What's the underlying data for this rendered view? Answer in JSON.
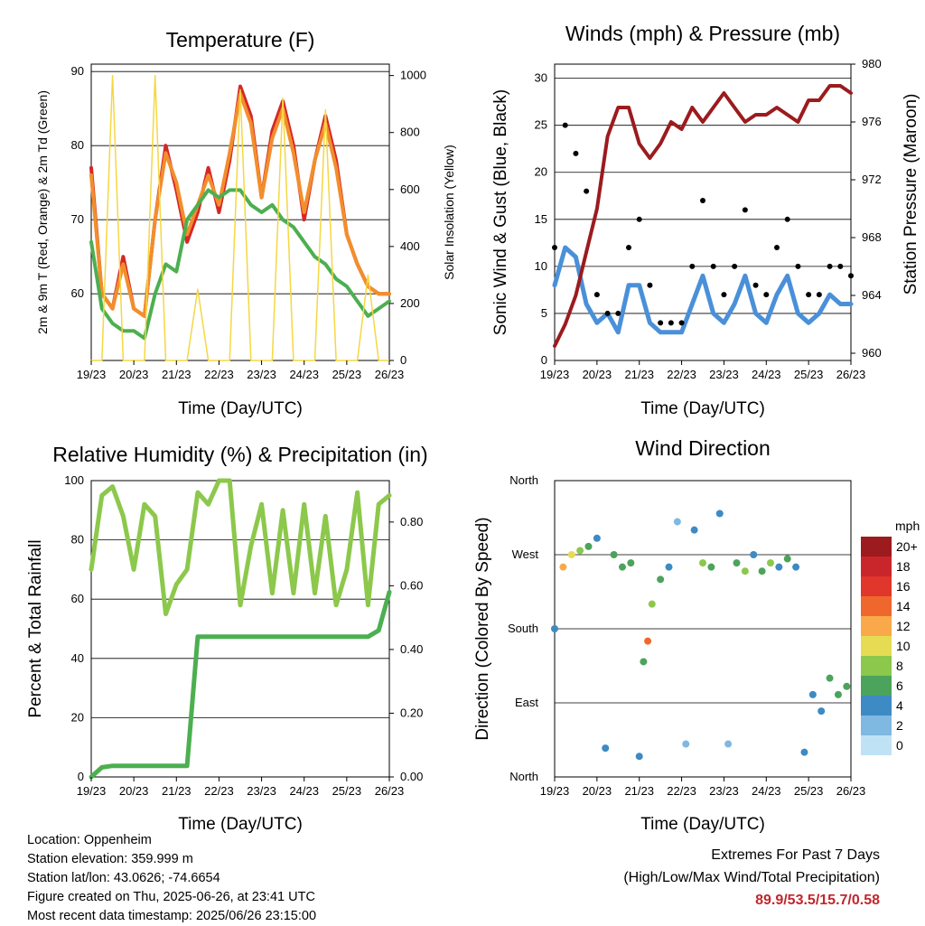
{
  "panels": {
    "temperature": {
      "title": "Temperature (F)",
      "ylabel_left": "2m & 9m T (Red, Orange) & 2m Td (Green)",
      "ylabel_right": "Solar Insolation (Yellow)",
      "xlabel": "Time (Day/UTC)"
    },
    "winds": {
      "title": "Winds (mph) & Pressure (mb)",
      "ylabel_left": "Sonic Wind & Gust (Blue, Black)",
      "ylabel_right": "Station Pressure (Maroon)",
      "xlabel": "Time (Day/UTC)"
    },
    "humidity": {
      "title": "Relative Humidity (%) & Precipitation (in)",
      "ylabel_left": "Percent & Total Rainfall",
      "xlabel": "Time (Day/UTC)"
    },
    "wind_direction": {
      "title": "Wind Direction",
      "ylabel_left": "Direction (Colored By Speed)",
      "xlabel": "Time (Day/UTC)",
      "colorbar_title": "mph",
      "colorbar_labels": [
        "20+",
        "18",
        "16",
        "14",
        "12",
        "10",
        "8",
        "6",
        "4",
        "2",
        "0"
      ],
      "colorbar_colors": [
        "#9b1b1e",
        "#c8262b",
        "#e0362c",
        "#f0672e",
        "#f9a94a",
        "#e6dc54",
        "#8cc84b",
        "#4ca35c",
        "#3d8ac4",
        "#7fb8e0",
        "#bfe3f5"
      ]
    }
  },
  "info": {
    "location": "Location: Oppenheim",
    "elevation": "Station elevation: 359.999 m",
    "latlon": "Station lat/lon: 43.0626; -74.6654",
    "created": "Figure created on Thu, 2025-06-26, at 23:41 UTC",
    "recent": "Most recent data timestamp: 2025/06/26 23:15:00"
  },
  "extremes": {
    "title": "Extremes For Past 7 Days",
    "subtitle": "(High/Low/Max Wind/Total Precipitation)",
    "values": "89.9/53.5/15.7/0.58"
  },
  "chart_data": [
    {
      "type": "line",
      "title": "Temperature (F)",
      "xlabel": "Time (Day/UTC)",
      "ylabel": "2m & 9m T (Red, Orange) & 2m Td (Green)",
      "y2label": "Solar Insolation (Yellow)",
      "x_ticks": [
        "19/23",
        "20/23",
        "21/23",
        "22/23",
        "23/23",
        "24/23",
        "25/23",
        "26/23"
      ],
      "x": [
        0,
        0.25,
        0.5,
        0.75,
        1,
        1.25,
        1.5,
        1.75,
        2,
        2.25,
        2.5,
        2.75,
        3,
        3.25,
        3.5,
        3.75,
        4,
        4.25,
        4.5,
        4.75,
        5,
        5.25,
        5.5,
        5.75,
        6,
        6.25,
        6.5,
        6.75,
        7
      ],
      "ylim": [
        51,
        91
      ],
      "y_ticks": [
        60,
        70,
        80,
        90
      ],
      "y2lim": [
        0,
        1040
      ],
      "y2_ticks": [
        0,
        200,
        400,
        600,
        800,
        1000
      ],
      "series": [
        {
          "color": "#d62728",
          "axis": "left",
          "values": [
            77,
            60,
            58,
            65,
            58,
            57,
            70,
            80,
            74,
            67,
            71,
            77,
            71,
            78,
            88,
            84,
            73,
            82,
            86,
            80,
            70,
            78,
            84,
            78,
            68,
            64,
            61,
            60,
            60
          ]
        },
        {
          "color": "#f28e2b",
          "axis": "left",
          "values": [
            76,
            60,
            58,
            64,
            58,
            57,
            70,
            79,
            75,
            68,
            72,
            76,
            72,
            79,
            87,
            83,
            73,
            81,
            85,
            79,
            71,
            78,
            83,
            77,
            68,
            64,
            61,
            60,
            60
          ]
        },
        {
          "color": "#4caf50",
          "axis": "left",
          "values": [
            67,
            58,
            56,
            55,
            55,
            54,
            60,
            64,
            63,
            70,
            72,
            74,
            73,
            74,
            74,
            72,
            71,
            72,
            70,
            69,
            67,
            65,
            64,
            62,
            61,
            59,
            57,
            58,
            59
          ]
        },
        {
          "color": "#f5d742",
          "axis": "right",
          "values": [
            0,
            0,
            1000,
            0,
            0,
            0,
            1000,
            0,
            0,
            0,
            250,
            0,
            0,
            0,
            950,
            0,
            0,
            0,
            920,
            0,
            0,
            0,
            880,
            0,
            0,
            0,
            300,
            0,
            0
          ]
        }
      ]
    },
    {
      "type": "line",
      "title": "Winds (mph) & Pressure (mb)",
      "xlabel": "Time (Day/UTC)",
      "ylabel": "Sonic Wind & Gust (Blue, Black)",
      "y2label": "Station Pressure (Maroon)",
      "x_ticks": [
        "19/23",
        "20/23",
        "21/23",
        "22/23",
        "23/23",
        "24/23",
        "25/23",
        "26/23"
      ],
      "x": [
        0,
        0.25,
        0.5,
        0.75,
        1,
        1.25,
        1.5,
        1.75,
        2,
        2.25,
        2.5,
        2.75,
        3,
        3.25,
        3.5,
        3.75,
        4,
        4.25,
        4.5,
        4.75,
        5,
        5.25,
        5.5,
        5.75,
        6,
        6.25,
        6.5,
        6.75,
        7
      ],
      "ylim": [
        0,
        31.5
      ],
      "y_ticks": [
        0,
        5,
        10,
        15,
        20,
        25,
        30
      ],
      "y2lim": [
        959.5,
        980
      ],
      "y2_ticks": [
        960,
        964,
        968,
        972,
        976,
        980
      ],
      "series": [
        {
          "color": "#4a90d9",
          "axis": "left",
          "values": [
            8,
            12,
            11,
            6,
            4,
            5,
            3,
            8,
            8,
            4,
            3,
            3,
            3,
            6,
            9,
            5,
            4,
            6,
            9,
            5,
            4,
            7,
            9,
            5,
            4,
            5,
            7,
            6,
            6
          ]
        },
        {
          "color": "#000000",
          "axis": "left",
          "values": [
            12,
            25,
            22,
            18,
            7,
            5,
            5,
            12,
            15,
            8,
            4,
            4,
            4,
            10,
            17,
            10,
            7,
            10,
            16,
            8,
            7,
            12,
            15,
            10,
            7,
            7,
            10,
            10,
            9
          ]
        },
        {
          "color": "#9b1b1e",
          "axis": "right",
          "values": [
            960.5,
            962,
            964,
            967,
            970,
            975,
            977,
            977,
            974.5,
            973.5,
            974.5,
            976,
            975.5,
            977,
            976,
            977,
            978,
            977,
            976,
            976.5,
            976.5,
            977,
            976.5,
            976,
            977.5,
            977.5,
            978.5,
            978.5,
            978
          ]
        }
      ]
    },
    {
      "type": "line",
      "title": "Relative Humidity (%) & Precipitation (in)",
      "xlabel": "Time (Day/UTC)",
      "ylabel": "Percent & Total Rainfall",
      "x_ticks": [
        "19/23",
        "20/23",
        "21/23",
        "22/23",
        "23/23",
        "24/23",
        "25/23",
        "26/23"
      ],
      "x": [
        0,
        0.25,
        0.5,
        0.75,
        1,
        1.25,
        1.5,
        1.75,
        2,
        2.25,
        2.5,
        2.75,
        3,
        3.25,
        3.5,
        3.75,
        4,
        4.25,
        4.5,
        4.75,
        5,
        5.25,
        5.5,
        5.75,
        6,
        6.25,
        6.5,
        6.75,
        7
      ],
      "ylim": [
        0,
        100
      ],
      "y_ticks": [
        0,
        20,
        40,
        60,
        80,
        100
      ],
      "y2lim": [
        0,
        0.93
      ],
      "y2_ticks": [
        0.0,
        0.2,
        0.4,
        0.6,
        0.8
      ],
      "series": [
        {
          "color": "#8cc84b",
          "axis": "left",
          "values": [
            70,
            95,
            98,
            88,
            70,
            92,
            88,
            55,
            65,
            70,
            96,
            92,
            100,
            100,
            58,
            78,
            92,
            62,
            90,
            62,
            92,
            62,
            88,
            58,
            70,
            96,
            58,
            92,
            95
          ]
        },
        {
          "color": "#4caf50",
          "axis": "right",
          "values": [
            0,
            0.03,
            0.035,
            0.035,
            0.035,
            0.035,
            0.035,
            0.035,
            0.035,
            0.035,
            0.44,
            0.44,
            0.44,
            0.44,
            0.44,
            0.44,
            0.44,
            0.44,
            0.44,
            0.44,
            0.44,
            0.44,
            0.44,
            0.44,
            0.44,
            0.44,
            0.44,
            0.46,
            0.58
          ]
        }
      ]
    },
    {
      "type": "scatter",
      "title": "Wind Direction",
      "xlabel": "Time (Day/UTC)",
      "ylabel": "Direction (Colored By Speed)",
      "x_ticks": [
        "19/23",
        "20/23",
        "21/23",
        "22/23",
        "23/23",
        "24/23",
        "25/23",
        "26/23"
      ],
      "y_ticks": [
        "North",
        "East",
        "South",
        "West",
        "North"
      ],
      "ylim": [
        0,
        360
      ],
      "colorbar_label": "mph",
      "x": [
        0,
        0.2,
        0.4,
        0.6,
        0.8,
        1.0,
        1.2,
        1.4,
        1.6,
        1.8,
        2.0,
        2.1,
        2.2,
        2.3,
        2.5,
        2.7,
        2.9,
        3.1,
        3.3,
        3.5,
        3.7,
        3.9,
        4.1,
        4.3,
        4.5,
        4.7,
        4.9,
        5.1,
        5.3,
        5.5,
        5.7,
        5.9,
        6.1,
        6.3,
        6.5,
        6.7,
        6.9
      ],
      "y": [
        180,
        255,
        270,
        275,
        280,
        290,
        35,
        270,
        255,
        260,
        25,
        140,
        165,
        210,
        240,
        255,
        310,
        40,
        300,
        260,
        255,
        320,
        40,
        260,
        250,
        270,
        250,
        260,
        255,
        265,
        255,
        30,
        100,
        80,
        120,
        100,
        110
      ],
      "speed": [
        4,
        12,
        10,
        8,
        6,
        4,
        3,
        6,
        6,
        5,
        3,
        6,
        14,
        8,
        6,
        4,
        2,
        2,
        4,
        8,
        6,
        3,
        2,
        6,
        8,
        4,
        6,
        8,
        4,
        6,
        4,
        3,
        4,
        3,
        5,
        6,
        6
      ]
    }
  ]
}
